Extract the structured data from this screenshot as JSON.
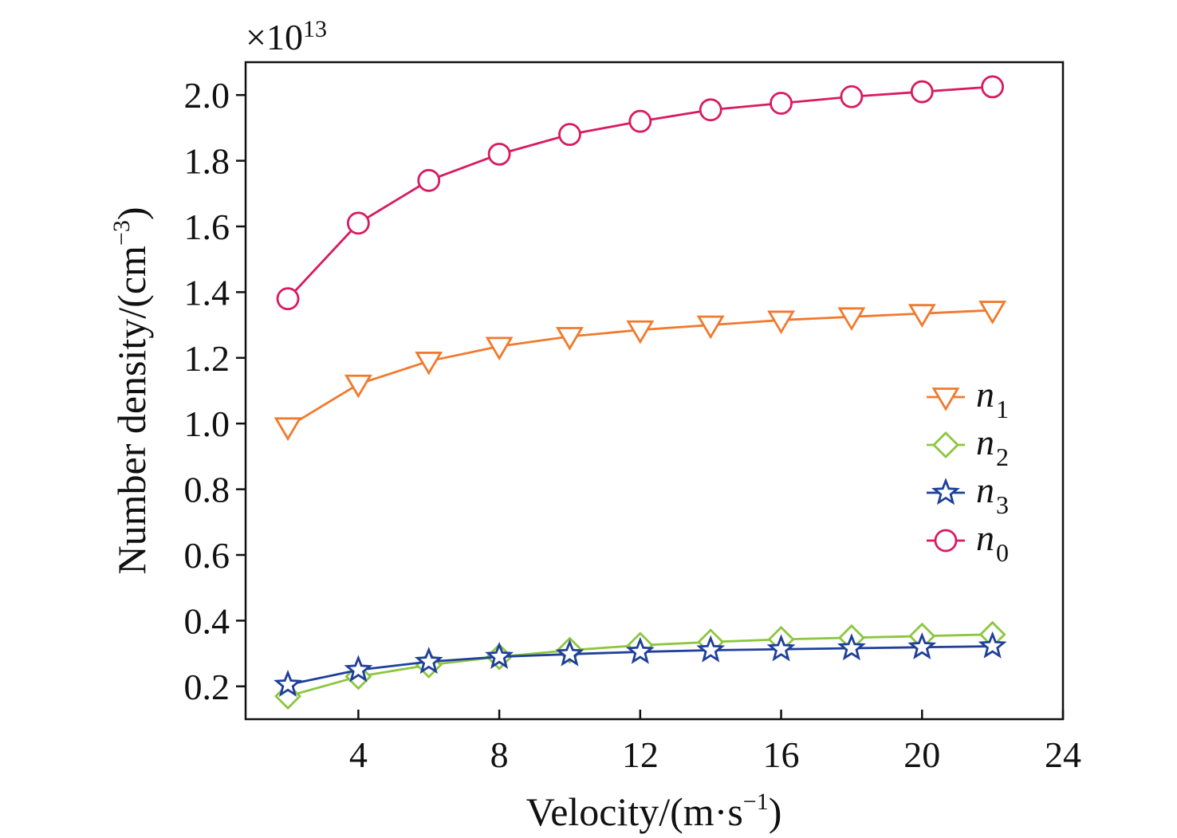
{
  "chart_data": {
    "type": "line",
    "multiplier_label": "×10",
    "multiplier_exp": "13",
    "xlabel_main": "Velocity/(m·s",
    "xlabel_exp": "−1",
    "xlabel_close": ")",
    "ylabel_main": "Number density/(cm",
    "ylabel_exp": "−3",
    "ylabel_close": ")",
    "xlim": [
      0.8,
      24
    ],
    "ylim": [
      0.1,
      2.1
    ],
    "xticks": [
      4,
      8,
      12,
      16,
      20,
      24
    ],
    "xtick_labels": [
      "4",
      "8",
      "12",
      "16",
      "20",
      "24"
    ],
    "yticks": [
      0.2,
      0.4,
      0.6,
      0.8,
      1.0,
      1.2,
      1.4,
      1.6,
      1.8,
      2.0
    ],
    "ytick_labels": [
      "0.2",
      "0.4",
      "0.6",
      "0.8",
      "1.0",
      "1.2",
      "1.4",
      "1.6",
      "1.8",
      "2.0"
    ],
    "legend_position": "right",
    "x": [
      2,
      4,
      6,
      8,
      10,
      12,
      14,
      16,
      18,
      20,
      22
    ],
    "series": [
      {
        "name": "n",
        "sub": "1",
        "marker": "triangle-down",
        "color": "#f07a2e",
        "values": [
          0.99,
          1.12,
          1.19,
          1.235,
          1.265,
          1.285,
          1.3,
          1.315,
          1.325,
          1.335,
          1.345
        ]
      },
      {
        "name": "n",
        "sub": "2",
        "marker": "diamond",
        "color": "#8cc63f",
        "values": [
          0.17,
          0.23,
          0.265,
          0.29,
          0.31,
          0.325,
          0.335,
          0.343,
          0.348,
          0.353,
          0.358
        ]
      },
      {
        "name": "n",
        "sub": "3",
        "marker": "star",
        "color": "#1f3f9a",
        "values": [
          0.205,
          0.25,
          0.275,
          0.29,
          0.298,
          0.305,
          0.31,
          0.313,
          0.316,
          0.319,
          0.322
        ]
      },
      {
        "name": "n",
        "sub": "0",
        "marker": "circle",
        "color": "#d81b60",
        "values": [
          1.38,
          1.61,
          1.74,
          1.82,
          1.88,
          1.92,
          1.955,
          1.975,
          1.995,
          2.01,
          2.025
        ]
      }
    ]
  }
}
